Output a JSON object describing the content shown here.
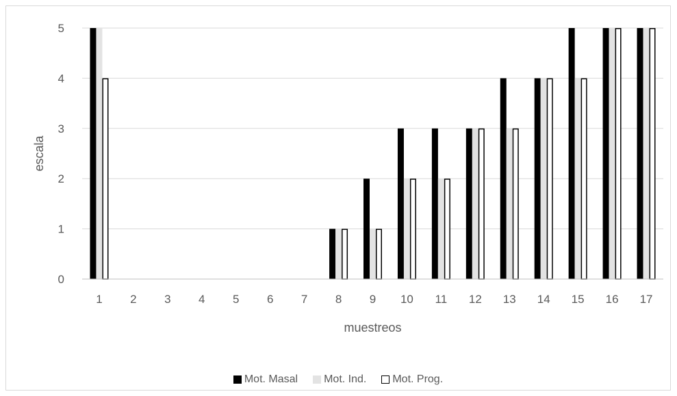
{
  "chart_data": {
    "type": "bar",
    "title": "",
    "xlabel": "muestreos",
    "ylabel": "escala",
    "ylim": [
      0,
      5
    ],
    "yticks": [
      "0",
      "1",
      "2",
      "3",
      "4",
      "5"
    ],
    "grid": true,
    "legend_position": "bottom",
    "categories": [
      "1",
      "2",
      "3",
      "4",
      "5",
      "6",
      "7",
      "8",
      "9",
      "10",
      "11",
      "12",
      "13",
      "14",
      "15",
      "16",
      "17"
    ],
    "series": [
      {
        "name": "Mot. Masal",
        "color": "#000000",
        "border": "#000000",
        "values": [
          5,
          0,
          0,
          0,
          0,
          0,
          0,
          1,
          2,
          3,
          3,
          3,
          4,
          4,
          5,
          5,
          5
        ]
      },
      {
        "name": "Mot. Ind.",
        "color": "#e3e3e3",
        "border": "#e3e3e3",
        "values": [
          5,
          0,
          0,
          0,
          0,
          0,
          0,
          1,
          1,
          2,
          2,
          3,
          3,
          4,
          4,
          5,
          5
        ]
      },
      {
        "name": "Mot. Prog.",
        "color": "#ffffff",
        "border": "#000000",
        "values": [
          4,
          0,
          0,
          0,
          0,
          0,
          0,
          1,
          1,
          2,
          2,
          3,
          3,
          4,
          4,
          5,
          5
        ]
      }
    ]
  }
}
